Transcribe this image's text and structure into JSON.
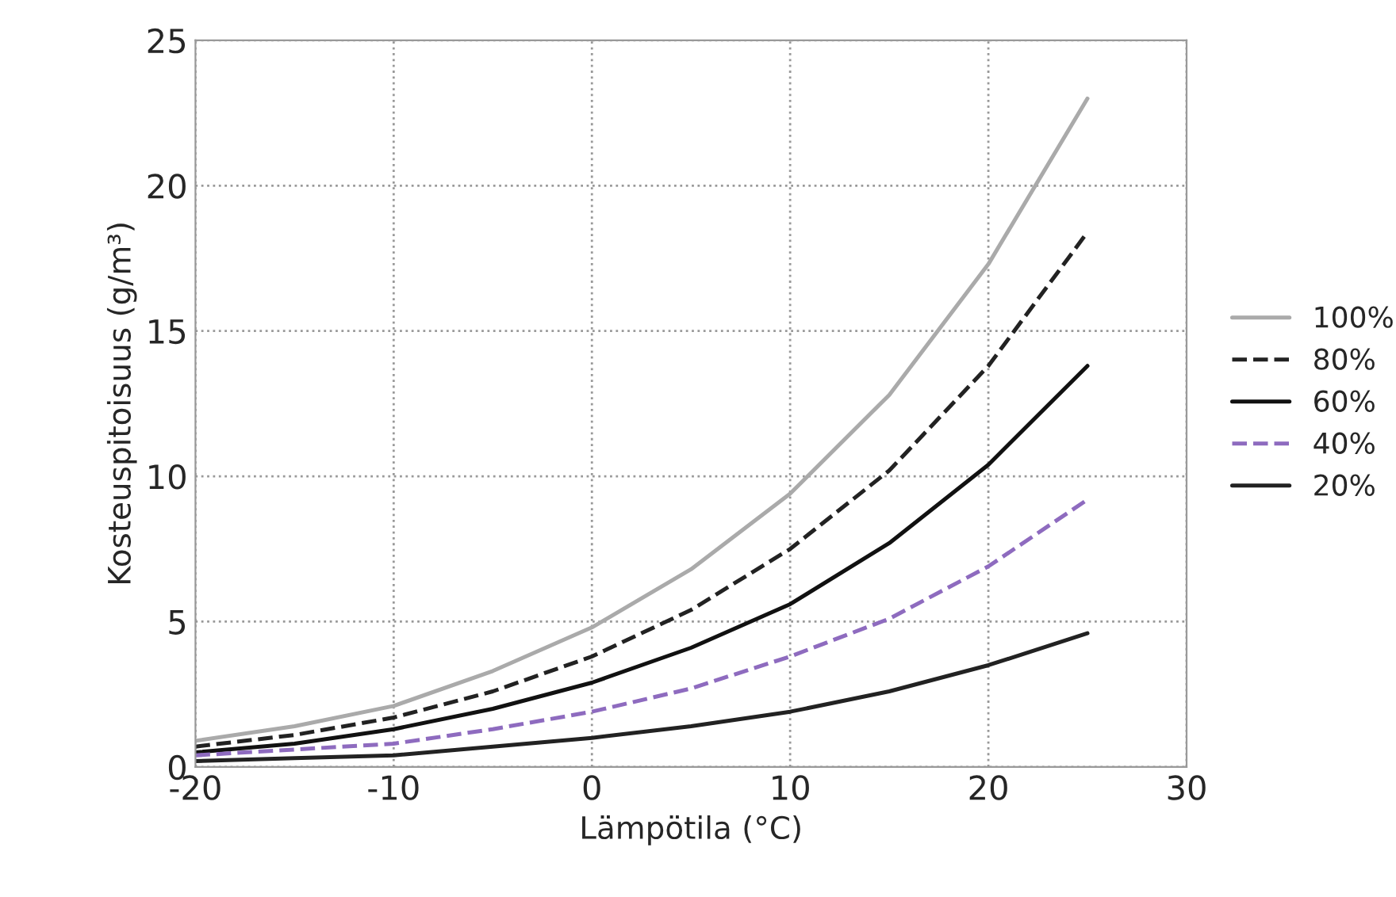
{
  "chart_data": {
    "type": "line",
    "xlabel": "Lämpötila (°C)",
    "ylabel": "Kosteuspitoisuus (g/m³)",
    "xlim": [
      -20,
      30
    ],
    "xticks": [
      -20,
      -10,
      0,
      10,
      20,
      30
    ],
    "ylim": [
      0,
      25
    ],
    "yticks": [
      0,
      5,
      10,
      15,
      20,
      25
    ],
    "grid": true,
    "legend": "right",
    "marker": "none",
    "series": [
      {
        "name": "100%",
        "color": "#aaaaaa",
        "line_style": "solid",
        "x": [
          -20,
          -15,
          -10,
          -5,
          0,
          5,
          10,
          15,
          20,
          25
        ],
        "values": [
          0.9,
          1.4,
          2.1,
          3.3,
          4.8,
          6.8,
          9.4,
          12.8,
          17.3,
          23.0
        ]
      },
      {
        "name": "80%",
        "color": "#222222",
        "line_style": "dashed",
        "x": [
          -20,
          -15,
          -10,
          -5,
          0,
          5,
          10,
          15,
          20,
          25
        ],
        "values": [
          0.7,
          1.1,
          1.7,
          2.6,
          3.8,
          5.4,
          7.5,
          10.2,
          13.8,
          18.4
        ]
      },
      {
        "name": "60%",
        "color": "#111111",
        "line_style": "solid",
        "x": [
          -20,
          -15,
          -10,
          -5,
          0,
          5,
          10,
          15,
          20,
          25
        ],
        "values": [
          0.5,
          0.8,
          1.3,
          2.0,
          2.9,
          4.1,
          5.6,
          7.7,
          10.4,
          13.8
        ]
      },
      {
        "name": "40%",
        "color": "#8e6bbf",
        "line_style": "dashed",
        "x": [
          -20,
          -15,
          -10,
          -5,
          0,
          5,
          10,
          15,
          20,
          25
        ],
        "values": [
          0.4,
          0.6,
          0.8,
          1.3,
          1.9,
          2.7,
          3.8,
          5.1,
          6.9,
          9.2
        ]
      },
      {
        "name": "20%",
        "color": "#222222",
        "line_style": "solid",
        "x": [
          -20,
          -15,
          -10,
          -5,
          0,
          5,
          10,
          15,
          20,
          25
        ],
        "values": [
          0.2,
          0.3,
          0.4,
          0.7,
          1.0,
          1.4,
          1.9,
          2.6,
          3.5,
          4.6
        ]
      }
    ]
  }
}
